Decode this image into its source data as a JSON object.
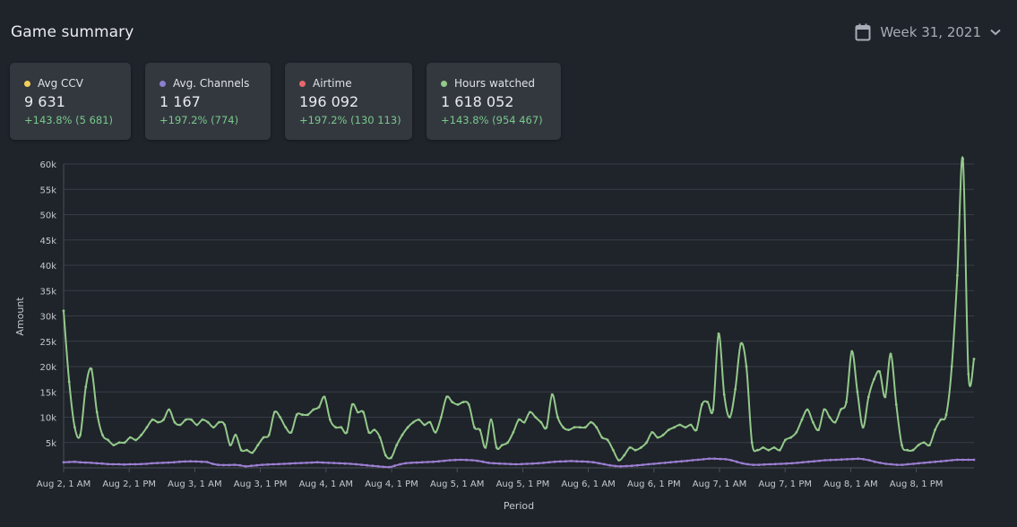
{
  "header": {
    "title": "Game summary",
    "week_label": "Week 31, 2021"
  },
  "colors": {
    "avg_ccv": "#f2cf5b",
    "avg_channels": "#8b7fd0",
    "airtime": "#e8676b",
    "hours_watched": "#93c98a",
    "positive_change": "#79c98b"
  },
  "cards": [
    {
      "label": "Avg CCV",
      "value": "9 631",
      "change": "+143.8% (5 681)",
      "color": "#f2cf5b"
    },
    {
      "label": "Avg. Channels",
      "value": "1 167",
      "change": "+197.2% (774)",
      "color": "#8b7fd0"
    },
    {
      "label": "Airtime",
      "value": "196 092",
      "change": "+197.2% (130 113)",
      "color": "#e8676b"
    },
    {
      "label": "Hours watched",
      "value": "1 618 052",
      "change": "+143.8% (954 467)",
      "color": "#93c98a"
    }
  ],
  "chart_data": {
    "type": "line",
    "xlabel": "Period",
    "ylabel": "Amount",
    "ylim": [
      0,
      60000
    ],
    "y_ticks": [
      "5k",
      "10k",
      "15k",
      "20k",
      "25k",
      "30k",
      "35k",
      "40k",
      "45k",
      "50k",
      "55k",
      "60k"
    ],
    "x_ticks": [
      "Aug 2, 1 AM",
      "Aug 2, 1 PM",
      "Aug 3, 1 AM",
      "Aug 3, 1 PM",
      "Aug 4, 1 AM",
      "Aug 4, 1 PM",
      "Aug 5, 1 AM",
      "Aug 5, 1 PM",
      "Aug 6, 1 AM",
      "Aug 6, 1 PM",
      "Aug 7, 1 AM",
      "Aug 7, 1 PM",
      "Aug 8, 1 AM",
      "Aug 8, 1 PM"
    ],
    "grid": true,
    "series": [
      {
        "color": "#93c98a",
        "values": [
          31000,
          17000,
          8000,
          6500,
          16000,
          19500,
          11000,
          6500,
          5500,
          4500,
          5000,
          5000,
          6000,
          5500,
          6500,
          8000,
          9500,
          9000,
          9500,
          11500,
          9000,
          8500,
          9500,
          9500,
          8500,
          9500,
          9000,
          8000,
          9000,
          8500,
          4500,
          6500,
          3500,
          3500,
          3000,
          4500,
          6000,
          6500,
          11000,
          10000,
          8000,
          7000,
          10500,
          10500,
          10500,
          11500,
          12000,
          14000,
          9500,
          8000,
          8000,
          7000,
          12500,
          11000,
          11000,
          7000,
          7500,
          6000,
          2500,
          2000,
          4500,
          6500,
          8000,
          9000,
          9500,
          8500,
          9000,
          7000,
          10000,
          14000,
          13000,
          12500,
          13000,
          12500,
          8000,
          7500,
          4000,
          9500,
          4000,
          4500,
          5000,
          7000,
          9500,
          9000,
          11000,
          10000,
          9000,
          8000,
          14500,
          10000,
          8000,
          7500,
          8000,
          8000,
          8000,
          9000,
          8000,
          6000,
          5500,
          3500,
          1500,
          2500,
          4000,
          3500,
          4000,
          5000,
          7000,
          6000,
          6500,
          7500,
          8000,
          8500,
          8000,
          8500,
          7500,
          12500,
          13000,
          11500,
          26500,
          14500,
          10000,
          15500,
          24500,
          20000,
          5000,
          3500,
          4000,
          3500,
          4000,
          3500,
          5500,
          6000,
          7000,
          9500,
          11500,
          9000,
          7500,
          11500,
          10000,
          9000,
          11500,
          13000,
          23000,
          15000,
          8000,
          14000,
          17500,
          19000,
          14000,
          22500,
          12500,
          4500,
          3500,
          3500,
          4500,
          5000,
          4500,
          7500,
          9500,
          10500,
          20000,
          38000,
          61000,
          18500,
          21500
        ]
      },
      {
        "color": "#9a7ed0",
        "values": [
          1100,
          1150,
          1200,
          1100,
          1050,
          1000,
          900,
          850,
          750,
          700,
          700,
          650,
          700,
          700,
          750,
          800,
          900,
          950,
          1000,
          1050,
          1100,
          1200,
          1250,
          1300,
          1250,
          1200,
          1150,
          800,
          600,
          550,
          550,
          600,
          500,
          300,
          400,
          500,
          600,
          650,
          700,
          750,
          800,
          850,
          900,
          950,
          1000,
          1050,
          1100,
          1050,
          1000,
          950,
          900,
          850,
          800,
          700,
          600,
          500,
          400,
          300,
          200,
          150,
          400,
          700,
          900,
          1000,
          1050,
          1100,
          1150,
          1200,
          1300,
          1400,
          1500,
          1550,
          1600,
          1550,
          1500,
          1400,
          1200,
          1000,
          900,
          850,
          800,
          750,
          700,
          750,
          800,
          850,
          900,
          1000,
          1100,
          1200,
          1250,
          1300,
          1350,
          1300,
          1250,
          1200,
          1100,
          900,
          700,
          500,
          350,
          300,
          350,
          400,
          500,
          600,
          700,
          800,
          900,
          1000,
          1100,
          1200,
          1300,
          1400,
          1500,
          1600,
          1700,
          1800,
          1800,
          1750,
          1700,
          1500,
          1200,
          900,
          700,
          600,
          600,
          650,
          700,
          750,
          800,
          850,
          900,
          1000,
          1100,
          1200,
          1300,
          1400,
          1500,
          1550,
          1600,
          1650,
          1700,
          1750,
          1800,
          1700,
          1500,
          1200,
          1000,
          800,
          700,
          600,
          600,
          700,
          800,
          900,
          1000,
          1100,
          1200,
          1300,
          1400,
          1500,
          1600,
          1600,
          1600,
          1600
        ]
      }
    ]
  }
}
